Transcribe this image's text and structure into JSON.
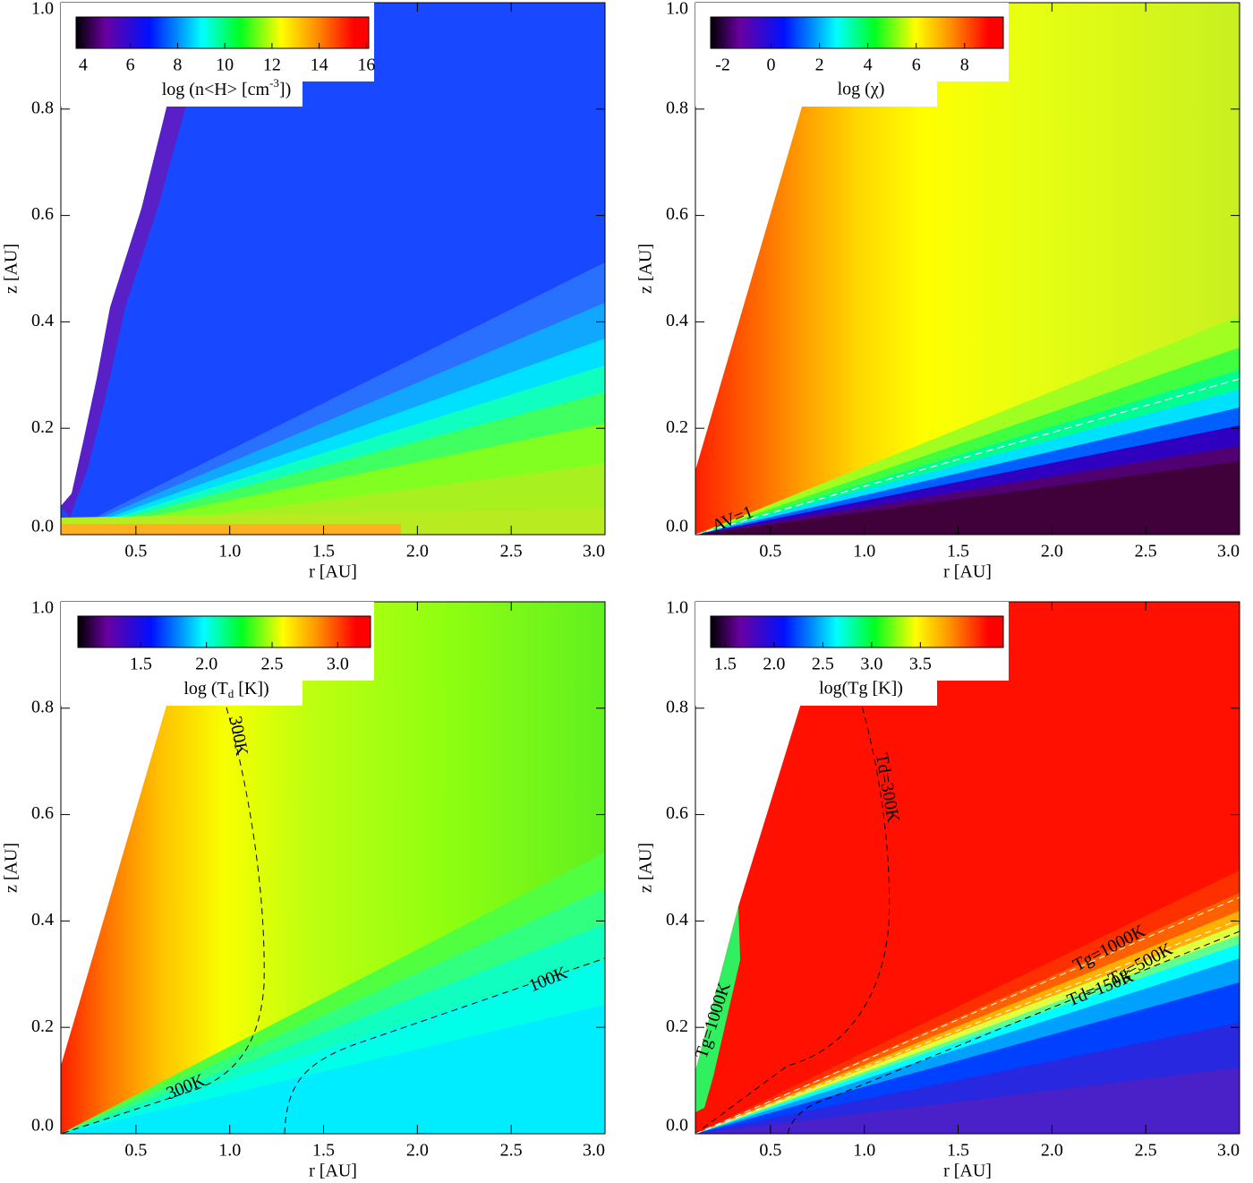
{
  "chart_data": [
    {
      "type": "contour",
      "xlabel": "r [AU]",
      "ylabel": "z [AU]",
      "xlim": [
        0.1,
        3.0
      ],
      "ylim": [
        0,
        1
      ],
      "xticks": [
        0.5,
        {
          "value": 1,
          "label": "1.0"
        },
        1.5,
        {
          "value": 2,
          "label": "2.0"
        },
        2.5,
        {
          "value": 3,
          "label": "3.0"
        }
      ],
      "yticks": [
        {
          "value": 0,
          "label": "0.0"
        },
        0.2,
        0.4,
        0.6,
        0.8,
        {
          "value": 1,
          "label": "1.0"
        }
      ],
      "colorbar": {
        "label": {
          "before": "log (n<H> [cm",
          "sup": "-3",
          "after": "])"
        },
        "clim": [
          3.7,
          16.1
        ],
        "ticks": [
          4,
          6,
          8,
          10,
          12,
          14,
          16
        ]
      },
      "annotations": []
    },
    {
      "type": "contour",
      "xlabel": "r [AU]",
      "ylabel": "z [AU]",
      "xlim": [
        0.1,
        3.0
      ],
      "ylim": [
        0,
        1
      ],
      "xticks": [
        0.5,
        {
          "value": 1,
          "label": "1.0"
        },
        1.5,
        {
          "value": 2,
          "label": "2.0"
        },
        2.5,
        {
          "value": 3,
          "label": "3.0"
        }
      ],
      "yticks": [
        {
          "value": 0,
          "label": "0.0"
        },
        0.2,
        0.4,
        0.6,
        0.8,
        {
          "value": 1,
          "label": "1.0"
        }
      ],
      "colorbar": {
        "label": "log (χ)",
        "clim": [
          -2.5,
          9.6
        ],
        "ticks": [
          -2,
          0,
          2,
          4,
          6,
          8
        ]
      },
      "annotations": [
        {
          "text": "AV=1",
          "color": "white"
        }
      ]
    },
    {
      "type": "contour",
      "xlabel": "r [AU]",
      "ylabel": "z [AU]",
      "xlim": [
        0.1,
        3.0
      ],
      "ylim": [
        0,
        1
      ],
      "xticks": [
        0.5,
        {
          "value": 1,
          "label": "1.0"
        },
        1.5,
        {
          "value": 2,
          "label": "2.0"
        },
        2.5,
        {
          "value": 3,
          "label": "3.0"
        }
      ],
      "yticks": [
        {
          "value": 0,
          "label": "0.0"
        },
        0.2,
        0.4,
        0.6,
        0.8,
        {
          "value": 1,
          "label": "1.0"
        }
      ],
      "colorbar": {
        "label": {
          "before": "log (T",
          "sub": "d",
          "after": " [K])"
        },
        "clim": [
          1.02,
          3.25
        ],
        "ticks": [
          1.5,
          {
            "value": 2,
            "label": "2.0"
          },
          2.5,
          {
            "value": 3,
            "label": "3.0"
          }
        ]
      },
      "annotations": [
        {
          "text": "300K",
          "color": "black"
        },
        {
          "text": "300K",
          "color": "black"
        },
        {
          "text": "100K",
          "color": "black"
        }
      ]
    },
    {
      "type": "contour",
      "xlabel": "r [AU]",
      "ylabel": "z [AU]",
      "xlim": [
        0.1,
        3.0
      ],
      "ylim": [
        0,
        1
      ],
      "xticks": [
        0.5,
        {
          "value": 1,
          "label": "1.0"
        },
        1.5,
        {
          "value": 2,
          "label": "2.0"
        },
        2.5,
        {
          "value": 3,
          "label": "3.0"
        }
      ],
      "yticks": [
        {
          "value": 0,
          "label": "0.0"
        },
        0.2,
        0.4,
        0.6,
        0.8,
        {
          "value": 1,
          "label": "1.0"
        }
      ],
      "colorbar": {
        "label": "log(Tg [K])",
        "clim": [
          1.35,
          4.35
        ],
        "ticks": [
          1.5,
          {
            "value": 2,
            "label": "2.0"
          },
          2.5,
          {
            "value": 3,
            "label": "3.0"
          },
          3.5
        ]
      },
      "annotations": [
        {
          "text": "Td=300K",
          "color": "black"
        },
        {
          "text": "Tg=1000K",
          "color": "white"
        },
        {
          "text": "Tg=500K",
          "color": "white"
        },
        {
          "text": "Td=150K",
          "color": "black"
        },
        {
          "text": "Tg=1000K",
          "color": "white"
        }
      ]
    }
  ]
}
